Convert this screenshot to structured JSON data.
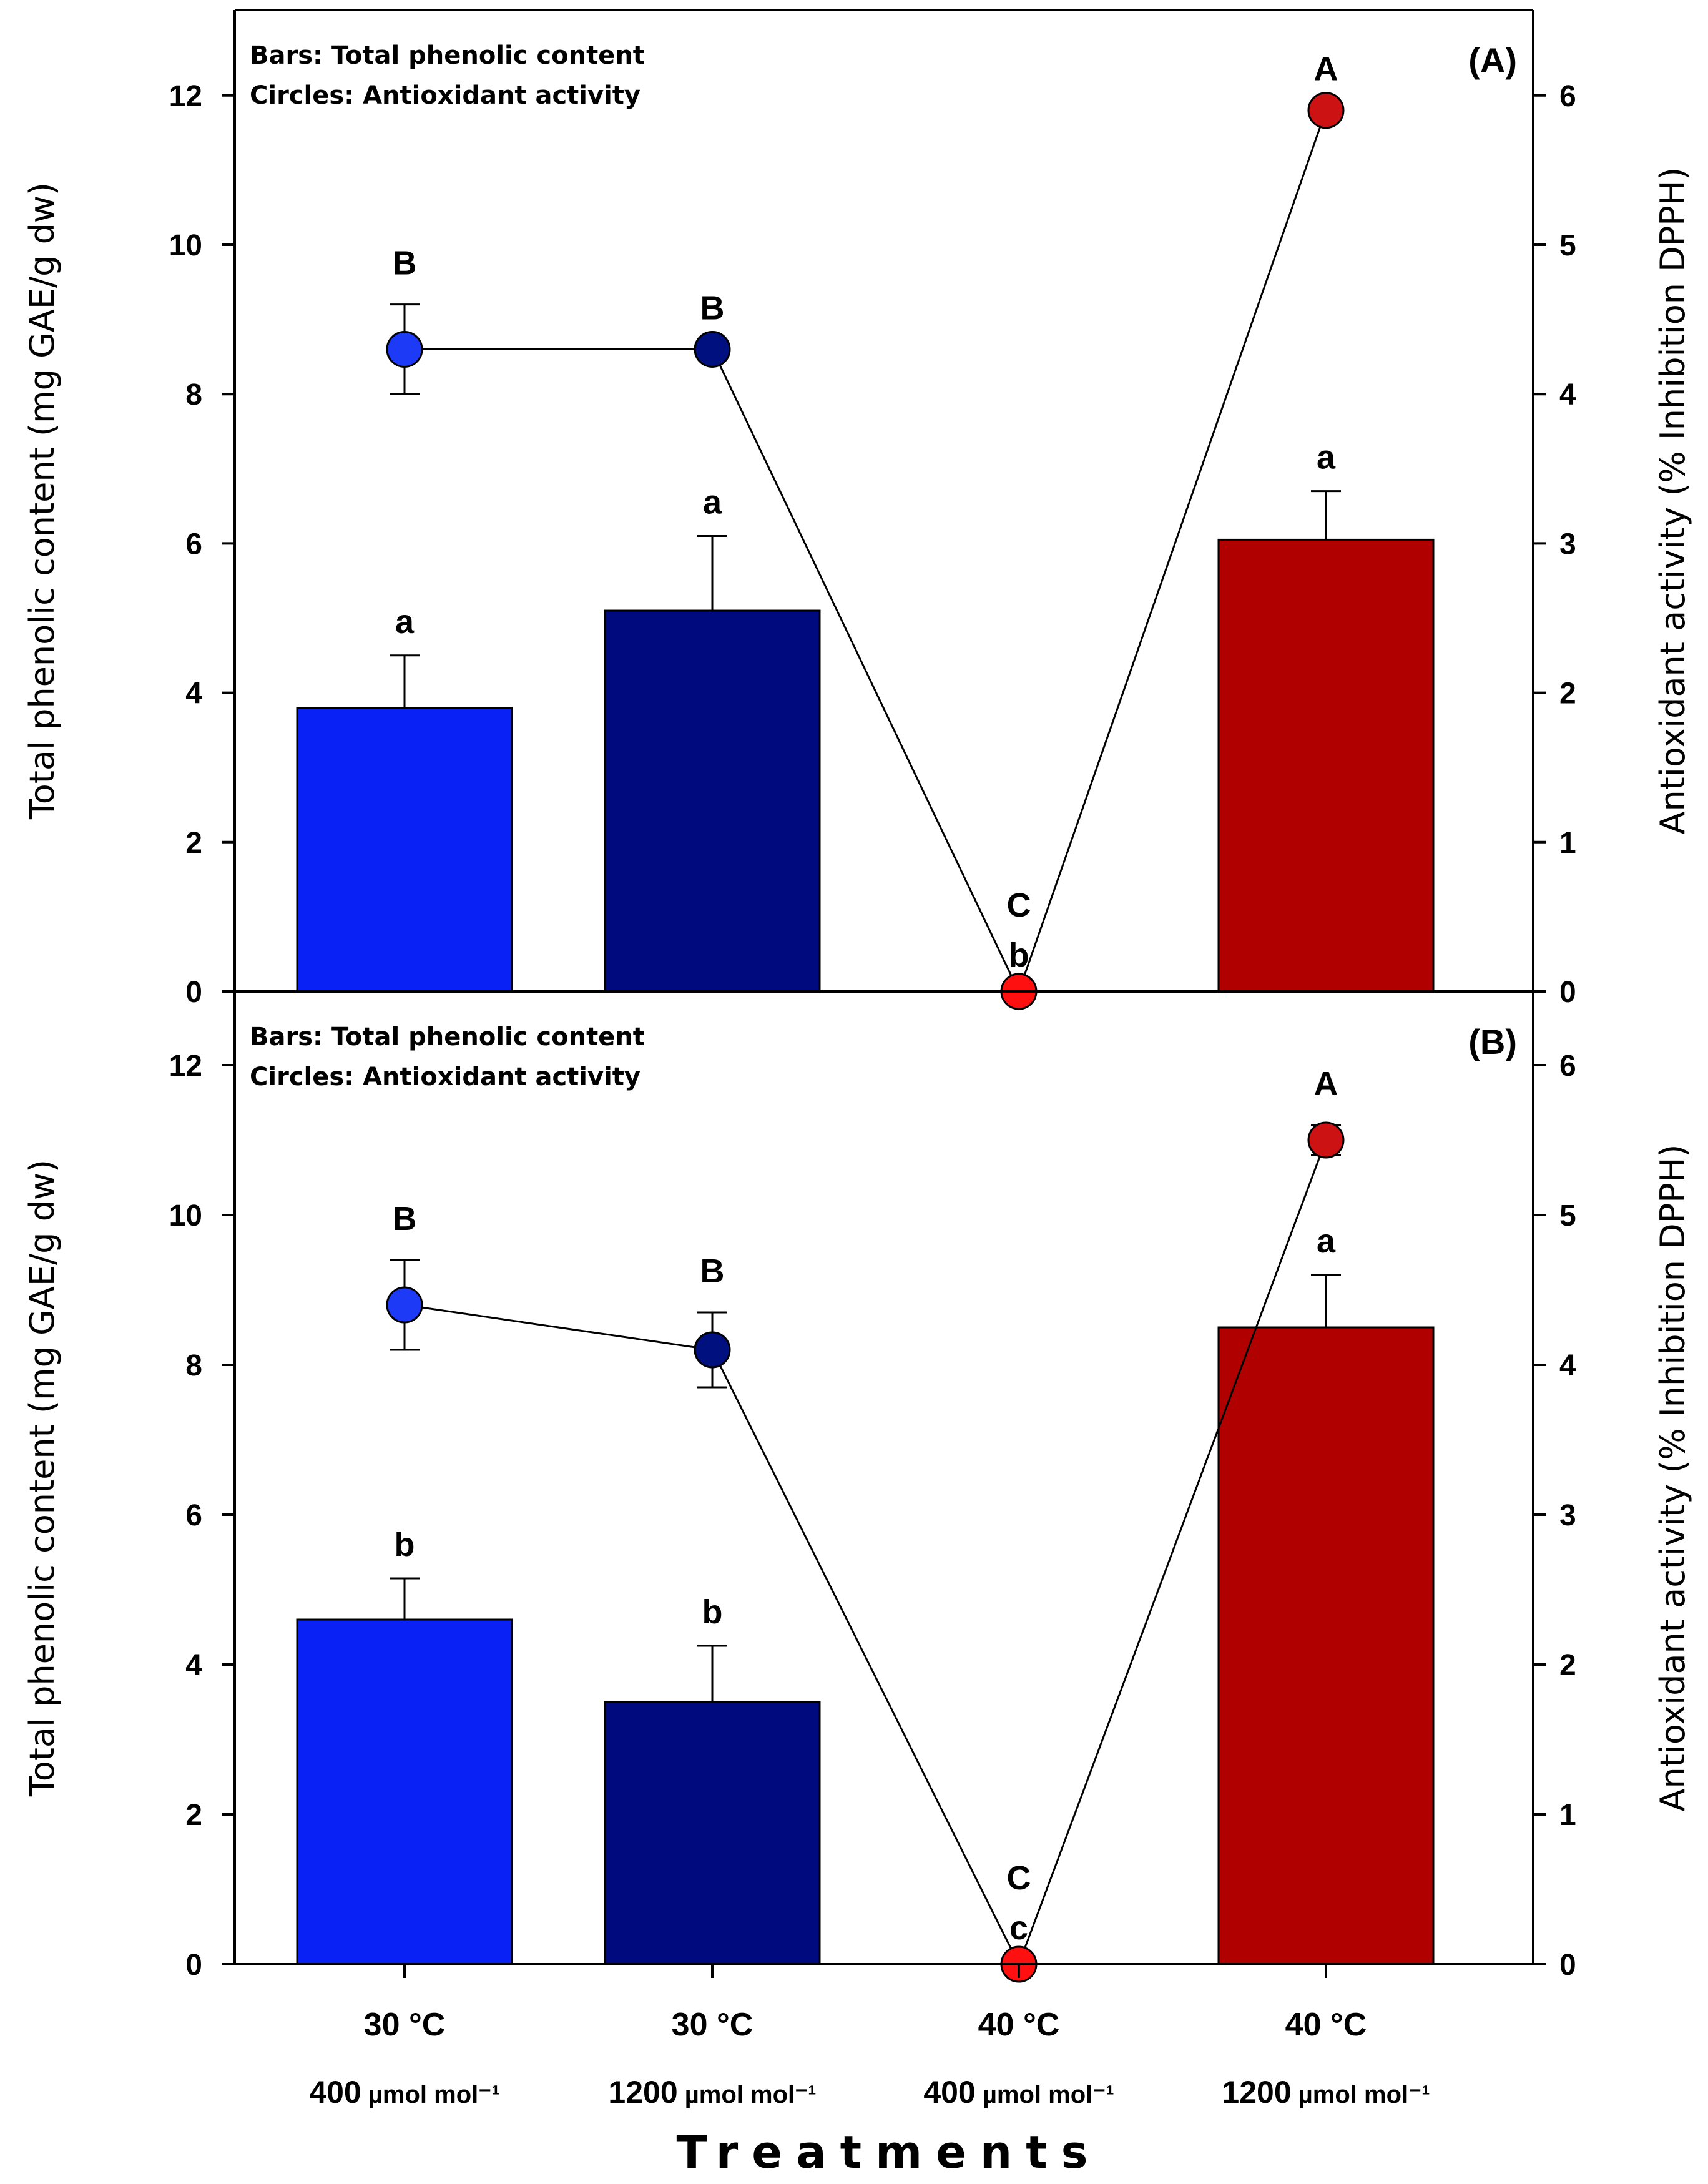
{
  "chart_data": [
    {
      "panel_label": "(A)",
      "type": "bar",
      "categories": [
        "30 °C 400 µmol mol⁻¹",
        "30 °C 1200 µmol mol⁻¹",
        "40 °C 400 µmol mol⁻¹",
        "40 °C 1200 µmol mol⁻¹"
      ],
      "notes": [
        "Bars: Total phenolic content",
        "Circles: Antioxidant activity"
      ],
      "ylabel_left": "Total phenolic content (mg GAE/g dw)",
      "ylabel_right": "Antioxidant activity (% Inhibition DPPH)",
      "ylim_left": [
        0,
        13
      ],
      "ylim_right": [
        0,
        6.5
      ],
      "yticks_left": [
        "0",
        "2",
        "4",
        "6",
        "8",
        "10",
        "12"
      ],
      "yticks_right": [
        "0",
        "1",
        "2",
        "3",
        "4",
        "5",
        "6"
      ],
      "bars": {
        "name": "Total phenolic content",
        "values": [
          3.8,
          5.1,
          0,
          6.05
        ],
        "errors": [
          0.7,
          1.0,
          0,
          0.65
        ],
        "letters": [
          "a",
          "a",
          "b",
          "a"
        ],
        "colors": [
          "#0a21f5",
          "#000a7f",
          "#ff0000",
          "#b00000"
        ]
      },
      "circles": {
        "name": "Antioxidant activity",
        "values": [
          4.3,
          4.3,
          0,
          5.9
        ],
        "errors": [
          0.3,
          0,
          0,
          0
        ],
        "letters": [
          "B",
          "B",
          "C",
          "A"
        ],
        "colors": [
          "#1d3af7",
          "#00107f",
          "#ff1010",
          "#cc1212"
        ]
      }
    },
    {
      "panel_label": "(B)",
      "type": "bar",
      "categories": [
        "30 °C 400 µmol mol⁻¹",
        "30 °C 1200 µmol mol⁻¹",
        "40 °C 400 µmol mol⁻¹",
        "40 °C 1200 µmol mol⁻¹"
      ],
      "notes": [
        "Bars: Total phenolic content",
        "Circles: Antioxidant activity"
      ],
      "ylabel_left": "Total phenolic content (mg GAE/g dw)",
      "ylabel_right": "Antioxidant activity (% Inhibition DPPH)",
      "ylim_left": [
        0,
        13
      ],
      "ylim_right": [
        0,
        6.5
      ],
      "yticks_left": [
        "0",
        "2",
        "4",
        "6",
        "8",
        "10",
        "12"
      ],
      "yticks_right": [
        "0",
        "1",
        "2",
        "3",
        "4",
        "5",
        "6"
      ],
      "bars": {
        "name": "Total phenolic content",
        "values": [
          4.6,
          3.5,
          0,
          8.5
        ],
        "errors": [
          0.55,
          0.75,
          0,
          0.7
        ],
        "letters": [
          "b",
          "b",
          "c",
          "a"
        ],
        "colors": [
          "#0a21f5",
          "#000a7f",
          "#ff0000",
          "#b00000"
        ]
      },
      "circles": {
        "name": "Antioxidant activity",
        "values": [
          4.4,
          4.1,
          0,
          5.5
        ],
        "errors": [
          0.3,
          0.25,
          0,
          0.1
        ],
        "letters": [
          "B",
          "B",
          "C",
          "A"
        ],
        "colors": [
          "#1d3af7",
          "#00107f",
          "#ff1010",
          "#cc1212"
        ]
      }
    }
  ],
  "x_axis": {
    "title": "Treatments",
    "tick_labels": [
      {
        "temp": "30 °C",
        "co2": "400",
        "unit": "µmol mol⁻¹"
      },
      {
        "temp": "30 °C",
        "co2": "1200",
        "unit": "µmol mol⁻¹"
      },
      {
        "temp": "40 °C",
        "co2": "400",
        "unit": "µmol mol⁻¹"
      },
      {
        "temp": "40 °C",
        "co2": "1200",
        "unit": "µmol mol⁻¹"
      }
    ]
  }
}
